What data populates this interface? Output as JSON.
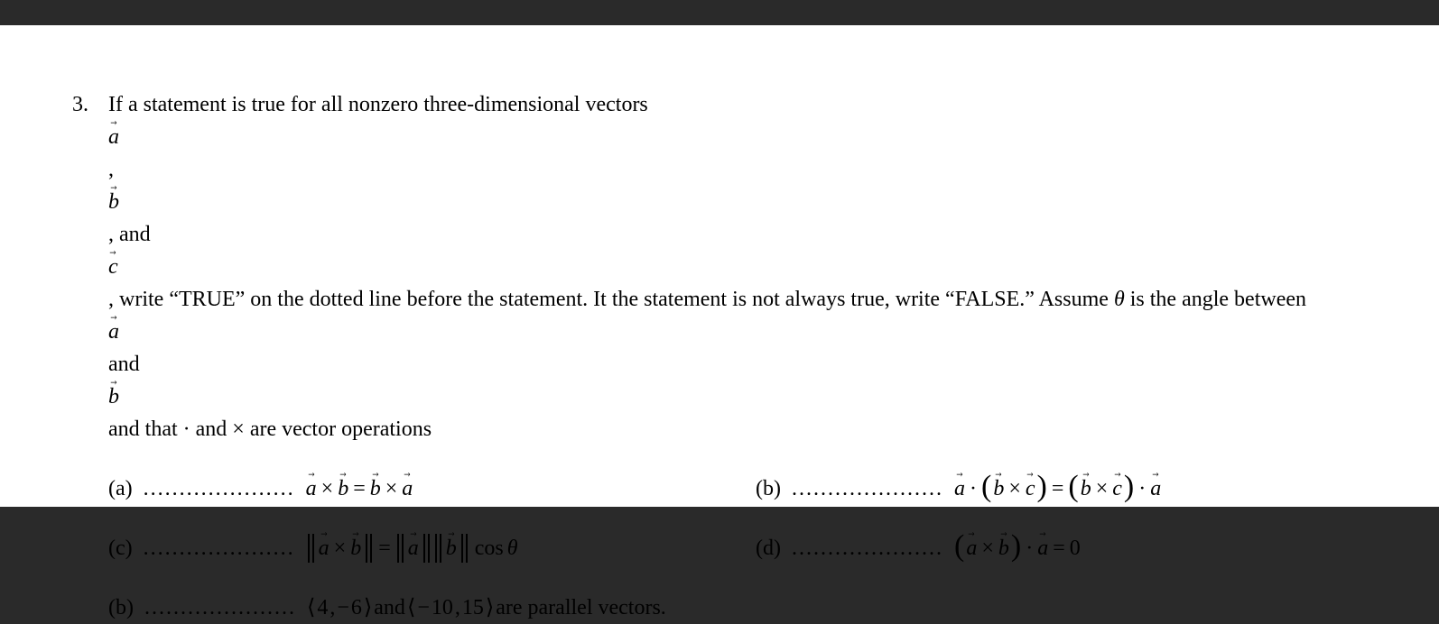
{
  "question": {
    "number": "3.",
    "text_part1": "If a statement is true for all nonzero three-dimensional vectors ",
    "vec_a": "a",
    "comma1": ", ",
    "vec_b": "b",
    "comma2": ",  and ",
    "vec_c": "c",
    "text_part2": ", write “TRUE” on the dotted line before the statement. It the statement is not always true, write “FALSE.”  Assume ",
    "theta": "θ",
    "text_part3": " is the angle between ",
    "text_part4": " and ",
    "text_part5": " and that · and × are vector operations"
  },
  "dots": ".....................",
  "options": {
    "a": {
      "label": "(a)"
    },
    "b": {
      "label": "(b)"
    },
    "c": {
      "label": "(c)"
    },
    "d": {
      "label": "(d)"
    },
    "e": {
      "label": "(b)"
    }
  },
  "math": {
    "a": "a",
    "b": "b",
    "c": "c",
    "cross": "×",
    "dot": "·",
    "eq": "=",
    "cos": "cos",
    "theta": "θ",
    "zero": "0",
    "minus": "−",
    "comma": ", ",
    "and": "  and  ",
    "parallel_text": "  are parallel vectors.",
    "lang": "⟨",
    "rang": "⟩",
    "n4": "4",
    "n6": "6",
    "n10": "10",
    "n15": "15"
  },
  "colors": {
    "page_bg": "#ffffff",
    "outer_bg": "#2a2a2a",
    "text": "#000000"
  }
}
